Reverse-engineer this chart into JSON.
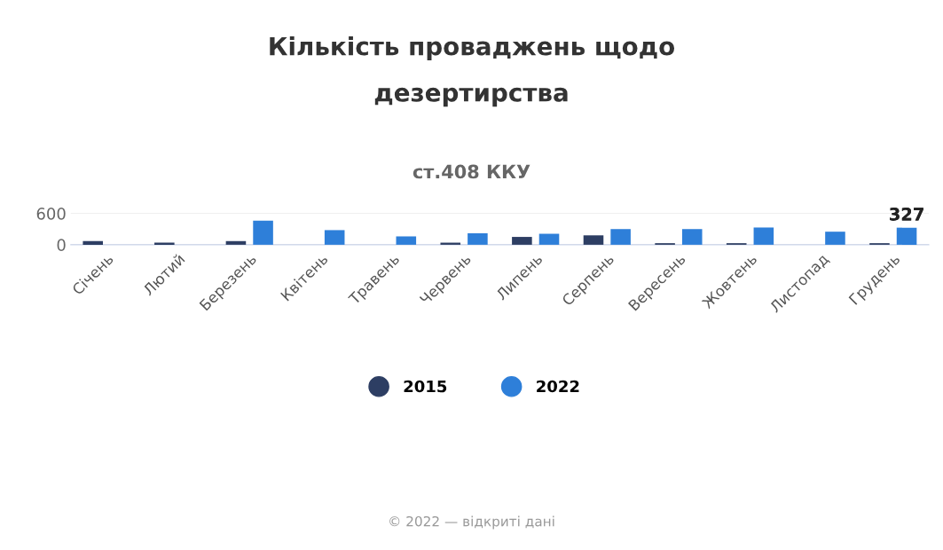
{
  "chart_data": {
    "type": "bar",
    "title": "Кількість проваджень щодо\nдезертирства",
    "subtitle": "ст.408 ККУ",
    "categories": [
      "Січень",
      "Лютий",
      "Березень",
      "Квітень",
      "Травень",
      "Червень",
      "Липень",
      "Серпень",
      "Вересень",
      "Жовтень",
      "Листопад",
      "Грудень"
    ],
    "series": [
      {
        "name": "2015",
        "color": "#2d3e63",
        "values": [
          70,
          40,
          70,
          null,
          null,
          40,
          150,
          180,
          30,
          30,
          null,
          30
        ]
      },
      {
        "name": "2022",
        "color": "#2e7fd9",
        "values": [
          null,
          null,
          460,
          280,
          160,
          220,
          210,
          300,
          300,
          330,
          250,
          327
        ],
        "value_labels": [
          null,
          null,
          null,
          null,
          null,
          null,
          null,
          null,
          null,
          null,
          null,
          "327"
        ]
      }
    ],
    "ylim": [
      0,
      600
    ],
    "yticks": [
      0,
      600
    ],
    "grid": "y",
    "legend": "bottom",
    "annotations": [
      "© 2022 — відкриті дані"
    ]
  }
}
